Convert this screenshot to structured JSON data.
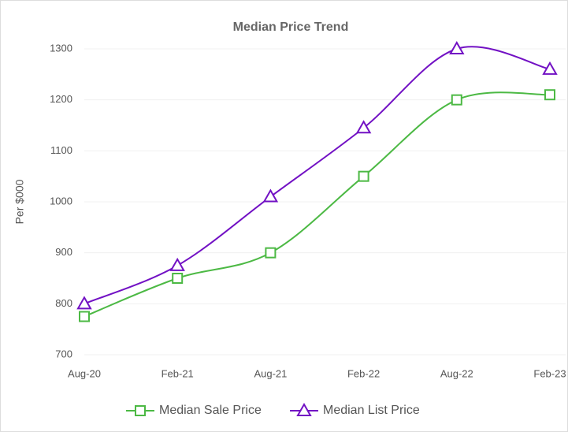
{
  "chart_data": {
    "type": "line",
    "title": "Median Price Trend",
    "y_label": "Per $000",
    "categories": [
      "Aug-20",
      "Feb-21",
      "Aug-21",
      "Feb-22",
      "Aug-22",
      "Feb-23"
    ],
    "series": [
      {
        "name": "Median Sale Price",
        "color": "#4cb944",
        "marker": "square",
        "values": [
          775,
          850,
          900,
          1050,
          1200,
          1210
        ]
      },
      {
        "name": "Median List Price",
        "color": "#7211c4",
        "marker": "triangle",
        "values": [
          800,
          875,
          1010,
          1145,
          1300,
          1260
        ]
      }
    ],
    "ylim": [
      700,
      1300
    ],
    "yticks": [
      700,
      800,
      900,
      1000,
      1100,
      1200,
      1300
    ],
    "grid": true,
    "legend": "bottom"
  }
}
